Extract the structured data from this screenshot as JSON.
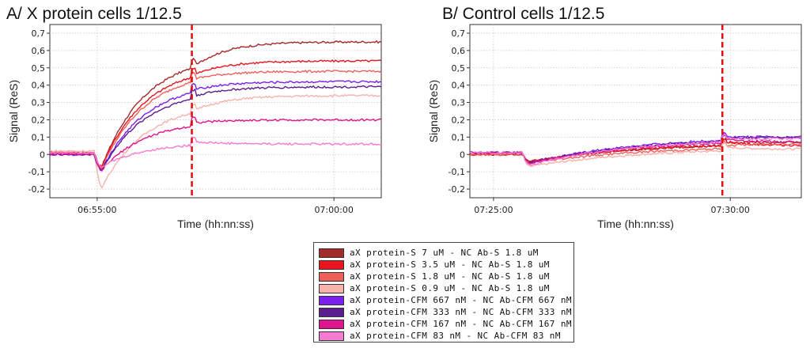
{
  "chart_data": [
    {
      "type": "line",
      "title": "A/ X protein cells 1/12.5",
      "xlabel": "Time (hh:nn:ss)",
      "ylabel": "Signal (ReS)",
      "ylim": [
        -0.25,
        0.75
      ],
      "yticks": [
        "0,7",
        "0,6",
        "0,5",
        "0,4",
        "0,3",
        "0,2",
        "0,1",
        "0",
        "-0,1",
        "-0,2"
      ],
      "yvalues": [
        0.7,
        0.6,
        0.5,
        0.4,
        0.3,
        0.2,
        0.1,
        0,
        -0.1,
        -0.2
      ],
      "xlim_sec": [
        24840,
        25260
      ],
      "xticks": [
        "06:55:00",
        "07:00:00"
      ],
      "xtick_sec": [
        24900,
        25200
      ],
      "marker_sec": 25020,
      "grid": true,
      "series": [
        {
          "name": "aX protein-S 7 uM - NC Ab-S 1.8 uM",
          "t0": 24900,
          "t1": 25020,
          "steady": 0.58,
          "final": 0.65,
          "pre": 0.01,
          "dip": -0.07
        },
        {
          "name": "aX protein-S 3.5 uM - NC Ab-S 1.8 uM",
          "t0": 24900,
          "t1": 25020,
          "steady": 0.52,
          "final": 0.54,
          "pre": 0.01,
          "dip": -0.07
        },
        {
          "name": "aX protein-S 1.8 uM - NC Ab-S 1.8 uM",
          "t0": 24900,
          "t1": 25020,
          "steady": 0.49,
          "final": 0.48,
          "pre": 0.01,
          "dip": -0.08
        },
        {
          "name": "aX protein-S 0.9 uM - NC Ab-S 1.8 uM",
          "t0": 24900,
          "t1": 25020,
          "steady": 0.3,
          "final": 0.34,
          "pre": 0.02,
          "dip": -0.19
        },
        {
          "name": "aX protein-CFM 667 nM - NC Ab-CFM 667 nM",
          "t0": 24900,
          "t1": 25020,
          "steady": 0.42,
          "final": 0.42,
          "pre": 0.0,
          "dip": -0.09
        },
        {
          "name": "aX protein-CFM 333 nM - NC Ab-CFM 333 nM",
          "t0": 24900,
          "t1": 25020,
          "steady": 0.38,
          "final": 0.39,
          "pre": 0.0,
          "dip": -0.09
        },
        {
          "name": "aX protein-CFM 167 nM - NC Ab-CFM 167 nM",
          "t0": 24900,
          "t1": 25020,
          "steady": 0.2,
          "final": 0.2,
          "pre": 0.0,
          "dip": -0.09
        },
        {
          "name": "aX protein-CFM 83 nM - NC Ab-CFM 83 nM",
          "t0": 24900,
          "t1": 25020,
          "steady": 0.07,
          "final": 0.06,
          "pre": 0.01,
          "dip": -0.07
        }
      ]
    },
    {
      "type": "line",
      "title": "B/ Control cells 1/12.5",
      "xlabel": "Time (hh:nn:ss)",
      "ylabel": "Signal (ReS)",
      "ylim": [
        -0.25,
        0.75
      ],
      "yticks": [
        "0,7",
        "0,6",
        "0,5",
        "0,4",
        "0,3",
        "0,2",
        "0,1",
        "0",
        "-0,1",
        "-0,2"
      ],
      "yvalues": [
        0.7,
        0.6,
        0.5,
        0.4,
        0.3,
        0.2,
        0.1,
        0,
        -0.1,
        -0.2
      ],
      "xlim_sec": [
        26670,
        27090
      ],
      "xticks": [
        "07:25:00",
        "07:30:00"
      ],
      "xtick_sec": [
        26700,
        27000
      ],
      "marker_sec": 26990,
      "grid": true,
      "series": [
        {
          "name": "aX protein-S 7 uM - NC Ab-S 1.8 uM",
          "t0": 26740,
          "t1": 26990,
          "steady": 0.07,
          "final": 0.07,
          "pre": 0.0,
          "dip": -0.04
        },
        {
          "name": "aX protein-S 3.5 uM - NC Ab-S 1.8 uM",
          "t0": 26740,
          "t1": 26990,
          "steady": 0.07,
          "final": 0.05,
          "pre": 0.0,
          "dip": -0.04
        },
        {
          "name": "aX protein-S 1.8 uM - NC Ab-S 1.8 uM",
          "t0": 26740,
          "t1": 26990,
          "steady": 0.05,
          "final": 0.06,
          "pre": 0.0,
          "dip": -0.05
        },
        {
          "name": "aX protein-S 0.9 uM - NC Ab-S 1.8 uM",
          "t0": 26740,
          "t1": 26990,
          "steady": 0.04,
          "final": 0.03,
          "pre": 0.01,
          "dip": -0.07
        },
        {
          "name": "aX protein-CFM 667 nM - NC Ab-CFM 667 nM",
          "t0": 26740,
          "t1": 26990,
          "steady": 0.11,
          "final": 0.1,
          "pre": 0.01,
          "dip": -0.05
        },
        {
          "name": "aX protein-CFM 333 nM - NC Ab-CFM 333 nM",
          "t0": 26740,
          "t1": 26990,
          "steady": 0.1,
          "final": 0.1,
          "pre": 0.01,
          "dip": -0.05
        },
        {
          "name": "aX protein-CFM 167 nM - NC Ab-CFM 167 nM",
          "t0": 26740,
          "t1": 26990,
          "steady": 0.09,
          "final": 0.07,
          "pre": 0.01,
          "dip": -0.05
        },
        {
          "name": "aX protein-CFM 83 nM - NC Ab-CFM 83 nM",
          "t0": 26740,
          "t1": 26990,
          "steady": 0.1,
          "final": 0.09,
          "pre": 0.01,
          "dip": -0.06
        }
      ]
    }
  ],
  "legend": {
    "placement": "bottom-center",
    "items": [
      {
        "label": "aX protein-S 7 uM - NC Ab-S 1.8 uM",
        "color": "#a52a2a"
      },
      {
        "label": "aX protein-S 3.5 uM - NC Ab-S 1.8 uM",
        "color": "#e8141e"
      },
      {
        "label": "aX protein-S 1.8 uM - NC Ab-S 1.8 uM",
        "color": "#f0605a"
      },
      {
        "label": "aX protein-S 0.9 uM - NC Ab-S 1.8 uM",
        "color": "#f7b2ac"
      },
      {
        "label": "aX protein-CFM 667 nM - NC Ab-CFM 667 nM",
        "color": "#7b1ff0"
      },
      {
        "label": "aX protein-CFM 333 nM - NC Ab-CFM 333 nM",
        "color": "#5a1d8e"
      },
      {
        "label": "aX protein-CFM 167 nM - NC Ab-CFM 167 nM",
        "color": "#e0148c"
      },
      {
        "label": "aX protein-CFM 83 nM - NC Ab-CFM 83 nM",
        "color": "#f57ad2"
      }
    ]
  },
  "marker_color": "#e01010"
}
